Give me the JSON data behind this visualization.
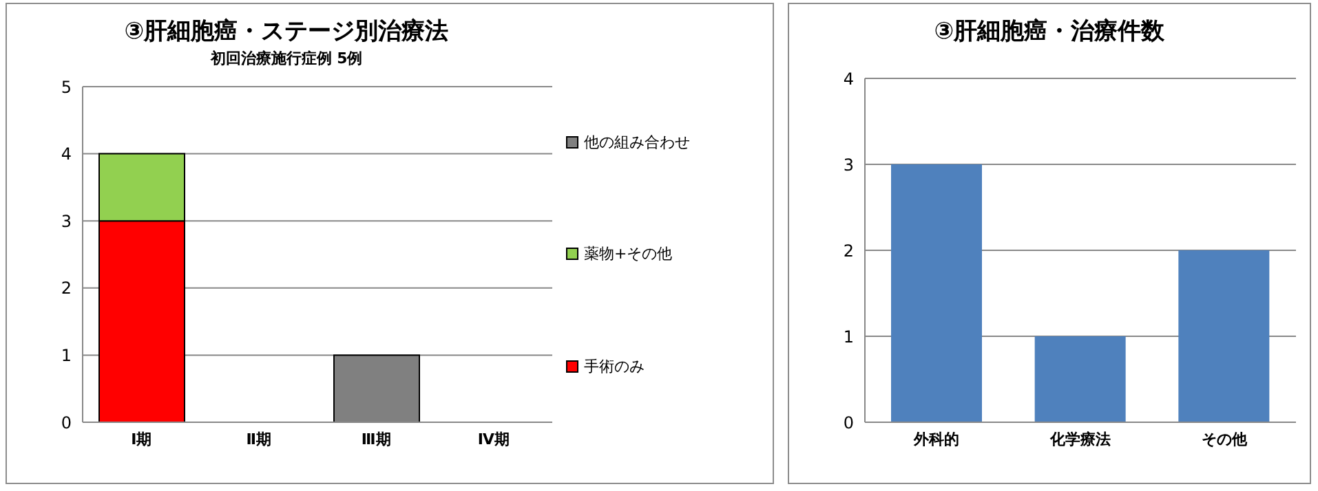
{
  "chart_data": [
    {
      "type": "bar",
      "title": "③肝細胞癌・ステージ別治療法",
      "subtitle": "初回治療施行症例  5例",
      "categories": [
        "Ⅰ期",
        "Ⅱ期",
        "Ⅲ期",
        "Ⅳ期"
      ],
      "stacked": true,
      "series": [
        {
          "name": "手術のみ",
          "color": "#ff0000",
          "values": [
            3,
            0,
            0,
            0
          ]
        },
        {
          "name": "薬物+その他",
          "color": "#92d050",
          "values": [
            1,
            0,
            0,
            0
          ]
        },
        {
          "name": "他の組み合わせ",
          "color": "#808080",
          "values": [
            0,
            0,
            1,
            0
          ]
        }
      ],
      "ylim": [
        0,
        5
      ],
      "yticks": [
        0,
        1,
        2,
        3,
        4,
        5
      ],
      "grid": "y",
      "legend": "right"
    },
    {
      "type": "bar",
      "title": "③肝細胞癌・治療件数",
      "categories": [
        "外科的",
        "化学療法",
        "その他"
      ],
      "values": [
        3,
        1,
        2
      ],
      "color": "#4f81bd",
      "ylim": [
        0,
        4
      ],
      "yticks": [
        0,
        1,
        2,
        3,
        4
      ],
      "grid": "y"
    }
  ]
}
